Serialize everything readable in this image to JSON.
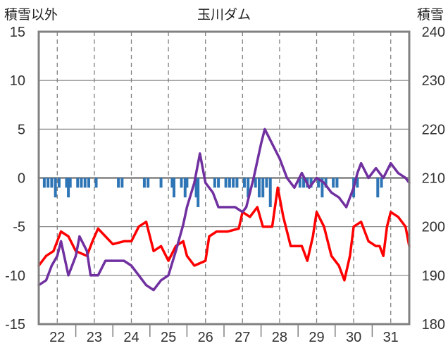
{
  "chart_data": {
    "type": "line",
    "title": "玉川ダム",
    "ylabel_left": "積雪以外",
    "ylabel_right": "積雪",
    "x_ticks": [
      "22",
      "23",
      "24",
      "25",
      "26",
      "27",
      "28",
      "29",
      "30",
      "31"
    ],
    "x_range": [
      21.5,
      31.5
    ],
    "ylim_left": [
      -15,
      15
    ],
    "yticks_left": [
      "15",
      "10",
      "5",
      "0",
      "-5",
      "-10",
      "-15"
    ],
    "ylim_right": [
      180,
      240
    ],
    "yticks_right": [
      "240",
      "230",
      "220",
      "210",
      "200",
      "190",
      "180"
    ],
    "grid": {
      "horizontal": "solid",
      "vertical": "dashed"
    },
    "colors": {
      "red": "#ff0000",
      "purple": "#7030a0",
      "bars": "#2e75b6",
      "grid": "#808080"
    },
    "series": [
      {
        "color": "#ff0000",
        "axis": "left",
        "kind": "line",
        "points": [
          [
            21.5,
            -9
          ],
          [
            21.7,
            -8
          ],
          [
            21.9,
            -7.5
          ],
          [
            22.0,
            -6.5
          ],
          [
            22.1,
            -5.5
          ],
          [
            22.3,
            -6
          ],
          [
            22.5,
            -7.5
          ],
          [
            22.8,
            -8
          ],
          [
            22.95,
            -6.5
          ],
          [
            23.1,
            -5.2
          ],
          [
            23.3,
            -6
          ],
          [
            23.5,
            -6.8
          ],
          [
            23.8,
            -6.5
          ],
          [
            24.0,
            -6.5
          ],
          [
            24.2,
            -5
          ],
          [
            24.4,
            -4.5
          ],
          [
            24.6,
            -7.5
          ],
          [
            24.8,
            -7
          ],
          [
            25.0,
            -8.5
          ],
          [
            25.2,
            -7
          ],
          [
            25.4,
            -6.5
          ],
          [
            25.5,
            -8
          ],
          [
            25.7,
            -9
          ],
          [
            26.0,
            -8.5
          ],
          [
            26.1,
            -6
          ],
          [
            26.3,
            -5.5
          ],
          [
            26.6,
            -5.5
          ],
          [
            26.9,
            -5.2
          ],
          [
            27.0,
            -3.5
          ],
          [
            27.2,
            -4
          ],
          [
            27.4,
            -3
          ],
          [
            27.55,
            -5
          ],
          [
            27.8,
            -5
          ],
          [
            27.95,
            -1
          ],
          [
            28.1,
            -4
          ],
          [
            28.3,
            -7
          ],
          [
            28.6,
            -7
          ],
          [
            28.75,
            -8.5
          ],
          [
            28.9,
            -6
          ],
          [
            29.0,
            -3.5
          ],
          [
            29.2,
            -5
          ],
          [
            29.4,
            -8
          ],
          [
            29.6,
            -9
          ],
          [
            29.75,
            -10.5
          ],
          [
            29.9,
            -8
          ],
          [
            30.0,
            -5
          ],
          [
            30.2,
            -4.5
          ],
          [
            30.4,
            -6.5
          ],
          [
            30.6,
            -7
          ],
          [
            30.7,
            -7
          ],
          [
            30.8,
            -8
          ],
          [
            30.9,
            -5
          ],
          [
            31.0,
            -3.5
          ],
          [
            31.2,
            -4
          ],
          [
            31.4,
            -5
          ],
          [
            31.5,
            -7
          ]
        ]
      },
      {
        "color": "#7030a0",
        "axis": "left",
        "kind": "line",
        "points": [
          [
            21.5,
            -11
          ],
          [
            21.7,
            -10.5
          ],
          [
            21.85,
            -9
          ],
          [
            22.0,
            -8
          ],
          [
            22.1,
            -6.5
          ],
          [
            22.3,
            -10
          ],
          [
            22.5,
            -8
          ],
          [
            22.6,
            -6
          ],
          [
            22.8,
            -7.5
          ],
          [
            22.9,
            -10
          ],
          [
            23.1,
            -10
          ],
          [
            23.3,
            -8.5
          ],
          [
            23.5,
            -8.5
          ],
          [
            23.8,
            -8.5
          ],
          [
            24.0,
            -9
          ],
          [
            24.2,
            -10
          ],
          [
            24.4,
            -11
          ],
          [
            24.6,
            -11.5
          ],
          [
            24.8,
            -10.5
          ],
          [
            25.0,
            -10
          ],
          [
            25.2,
            -7.5
          ],
          [
            25.4,
            -4.8
          ],
          [
            25.5,
            -3
          ],
          [
            25.7,
            -0.5
          ],
          [
            25.85,
            2.5
          ],
          [
            26.0,
            -0.5
          ],
          [
            26.2,
            -1.5
          ],
          [
            26.35,
            -3
          ],
          [
            26.6,
            -3
          ],
          [
            26.8,
            -3
          ],
          [
            27.0,
            -3.5
          ],
          [
            27.1,
            -3
          ],
          [
            27.3,
            0
          ],
          [
            27.5,
            3.5
          ],
          [
            27.6,
            5
          ],
          [
            27.8,
            3.5
          ],
          [
            28.0,
            2
          ],
          [
            28.2,
            0
          ],
          [
            28.4,
            -1
          ],
          [
            28.6,
            0.5
          ],
          [
            28.8,
            -1
          ],
          [
            29.0,
            0
          ],
          [
            29.2,
            -0.5
          ],
          [
            29.4,
            -1.5
          ],
          [
            29.6,
            -2
          ],
          [
            29.8,
            -3
          ],
          [
            30.0,
            -1
          ],
          [
            30.1,
            0.5
          ],
          [
            30.2,
            1.5
          ],
          [
            30.4,
            0
          ],
          [
            30.6,
            1
          ],
          [
            30.8,
            0
          ],
          [
            31.0,
            1.5
          ],
          [
            31.2,
            0.5
          ],
          [
            31.4,
            0
          ],
          [
            31.5,
            -0.5
          ]
        ]
      },
      {
        "color": "#2e75b6",
        "axis": "left",
        "kind": "bars",
        "bars": [
          [
            21.65,
            -1
          ],
          [
            21.75,
            -1
          ],
          [
            21.85,
            -1
          ],
          [
            21.95,
            -2
          ],
          [
            22.05,
            -1
          ],
          [
            22.25,
            -1
          ],
          [
            22.3,
            -2
          ],
          [
            22.35,
            -1
          ],
          [
            22.55,
            -1
          ],
          [
            22.65,
            -1
          ],
          [
            22.75,
            -1
          ],
          [
            22.85,
            -1
          ],
          [
            23.05,
            -1
          ],
          [
            23.65,
            -1
          ],
          [
            23.75,
            -1
          ],
          [
            24.35,
            -1
          ],
          [
            24.45,
            -1
          ],
          [
            24.8,
            -1
          ],
          [
            25.1,
            -1
          ],
          [
            25.15,
            -2
          ],
          [
            25.35,
            -1
          ],
          [
            25.45,
            -2
          ],
          [
            25.5,
            -1
          ],
          [
            25.75,
            -2
          ],
          [
            25.8,
            -3
          ],
          [
            26.25,
            -1
          ],
          [
            26.35,
            -1
          ],
          [
            26.55,
            -1
          ],
          [
            26.65,
            -1
          ],
          [
            26.75,
            -1
          ],
          [
            26.85,
            -1
          ],
          [
            27.05,
            -1
          ],
          [
            27.15,
            -2
          ],
          [
            27.35,
            -1
          ],
          [
            27.45,
            -2
          ],
          [
            27.55,
            -2
          ],
          [
            27.65,
            -1
          ],
          [
            27.75,
            -3
          ],
          [
            28.55,
            -1
          ],
          [
            28.65,
            -1
          ],
          [
            28.75,
            -1
          ],
          [
            28.85,
            -1
          ],
          [
            29.05,
            -1
          ],
          [
            29.15,
            -2
          ],
          [
            29.25,
            -1
          ],
          [
            29.45,
            -1
          ],
          [
            29.55,
            -1
          ],
          [
            30.0,
            -2
          ],
          [
            30.1,
            -1
          ],
          [
            30.65,
            -2
          ],
          [
            30.75,
            -1
          ]
        ]
      }
    ]
  }
}
